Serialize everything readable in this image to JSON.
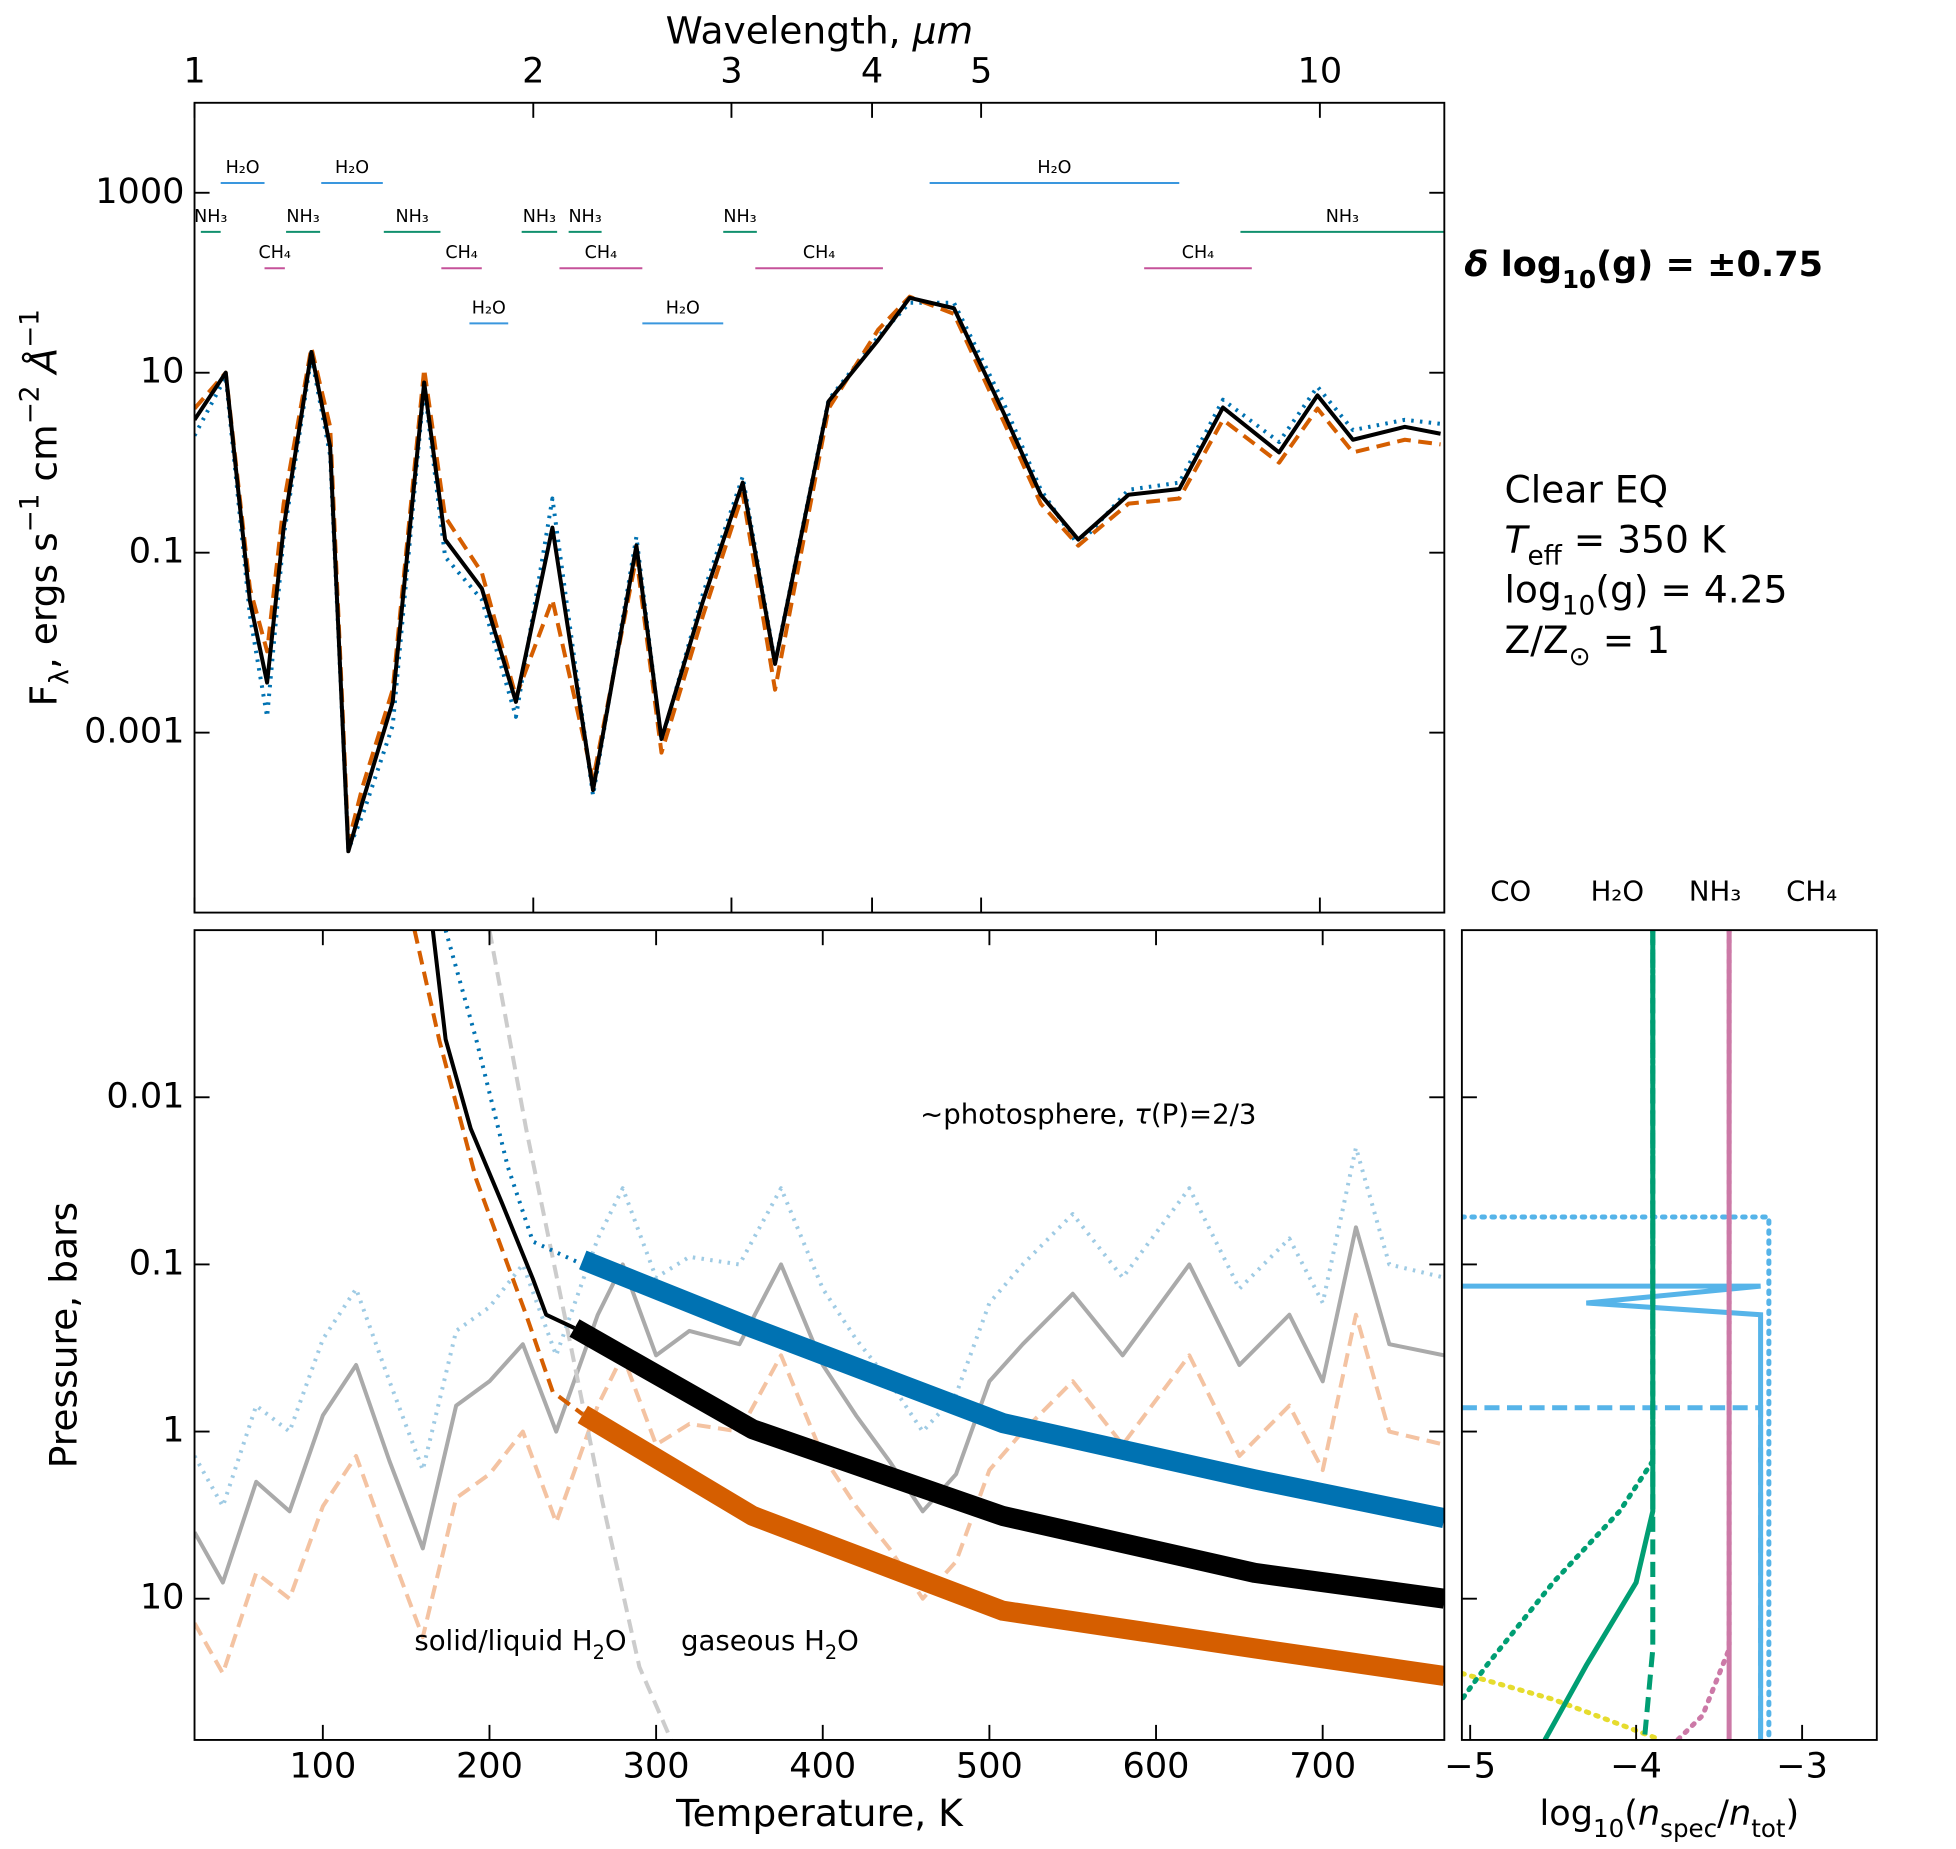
{
  "chart_data": [
    {
      "type": "line",
      "xscale": "log",
      "yscale": "log",
      "x_label": [
        {
          "text": "Wavelength, "
        },
        {
          "text": "μm",
          "style": "i"
        }
      ],
      "y_label": [
        {
          "text": "F"
        },
        {
          "text": "λ",
          "style": "sub"
        },
        {
          "text": ", ergs s"
        },
        {
          "text": "−1",
          "style": "sup"
        },
        {
          "text": " cm"
        },
        {
          "text": "−2",
          "style": "sup"
        },
        {
          "text": " "
        },
        {
          "text": "Å",
          "style": "i"
        },
        {
          "text": "−1",
          "style": "sup"
        }
      ],
      "xlim": [
        1,
        12.9
      ],
      "ylim": [
        1e-05,
        10000
      ],
      "xticks": [
        1,
        2,
        3,
        4,
        5,
        10
      ],
      "yticks": [
        0.001,
        0.1,
        10,
        1000
      ],
      "x": [
        1.0,
        1.066,
        1.12,
        1.16,
        1.2,
        1.27,
        1.32,
        1.37,
        1.41,
        1.5,
        1.6,
        1.67,
        1.8,
        1.93,
        2.08,
        2.26,
        2.47,
        2.6,
        2.83,
        3.07,
        3.28,
        3.66,
        4.05,
        4.32,
        4.73,
        5.24,
        5.65,
        6.1,
        6.76,
        7.5,
        8.2,
        9.2,
        9.95,
        10.7,
        11.9,
        12.8
      ],
      "series": [
        {
          "color": "#0072b2",
          "linestyle": "dotted",
          "values": [
            2,
            9,
            0.02,
            0.0015,
            0.15,
            15,
            1.2,
            5e-05,
            0.00012,
            0.0012,
            7,
            0.09,
            0.03,
            0.0015,
            0.4,
            0.0002,
            0.15,
            0.0008,
            0.035,
            0.7,
            0.006,
            5,
            25,
            60,
            60,
            4.5,
            0.5,
            0.12,
            0.5,
            0.6,
            5,
            1.7,
            7,
            2.3,
            3,
            2.7
          ]
        },
        {
          "color": "#d55e00",
          "linestyle": "dashed",
          "values": [
            4,
            10,
            0.04,
            0.008,
            0.35,
            19,
            2.5,
            6e-05,
            0.00025,
            0.003,
            11,
            0.25,
            0.06,
            0.0025,
            0.03,
            0.0003,
            0.09,
            0.0006,
            0.02,
            0.45,
            0.003,
            4,
            30,
            70,
            45,
            2.8,
            0.35,
            0.12,
            0.35,
            0.4,
            3,
            1,
            4,
            1.3,
            1.8,
            1.6
          ]
        },
        {
          "color": "#000000",
          "linestyle": "solid",
          "values": [
            3,
            10,
            0.029,
            0.0036,
            0.19,
            17,
            1.5,
            4.8e-05,
            0.00017,
            0.0022,
            7.8,
            0.14,
            0.04,
            0.0022,
            0.19,
            0.00023,
            0.12,
            0.00085,
            0.029,
            0.6,
            0.0058,
            4.8,
            23,
            68,
            52,
            3.5,
            0.44,
            0.14,
            0.44,
            0.51,
            4.1,
            1.3,
            5.6,
            1.8,
            2.5,
            2.1
          ]
        }
      ],
      "bands": [
        {
          "label": "H₂O",
          "range": [
            1.055,
            1.154
          ],
          "color": "#3a97de"
        },
        {
          "label": "H₂O",
          "range": [
            1.296,
            1.47
          ],
          "color": "#3a97de"
        },
        {
          "label": "H₂O",
          "range": [
            4.5,
            7.5
          ],
          "color": "#3a97de"
        },
        {
          "label": "NH₃",
          "range": [
            1.013,
            1.055
          ],
          "color": "#11906e"
        },
        {
          "label": "NH₃",
          "range": [
            1.206,
            1.293
          ],
          "color": "#11906e"
        },
        {
          "label": "NH₃",
          "range": [
            1.473,
            1.654
          ],
          "color": "#11906e"
        },
        {
          "label": "NH₃",
          "range": [
            1.953,
            2.1
          ],
          "color": "#11906e"
        },
        {
          "label": "NH₃",
          "range": [
            2.15,
            2.3
          ],
          "color": "#11906e"
        },
        {
          "label": "NH₃",
          "range": [
            2.95,
            3.16
          ],
          "color": "#11906e"
        },
        {
          "label": "NH₃",
          "range": [
            8.5,
            12.9
          ],
          "color": "#11906e"
        },
        {
          "label": "CH₄",
          "range": [
            1.154,
            1.203
          ],
          "color": "#c5529a"
        },
        {
          "label": "CH₄",
          "range": [
            1.657,
            1.8
          ],
          "color": "#c5529a"
        },
        {
          "label": "CH₄",
          "range": [
            2.11,
            2.5
          ],
          "color": "#c5529a"
        },
        {
          "label": "CH₄",
          "range": [
            3.15,
            4.09
          ],
          "color": "#c5529a"
        },
        {
          "label": "CH₄",
          "range": [
            6.98,
            8.7
          ],
          "color": "#c5529a"
        },
        {
          "label": "H₂O",
          "range": [
            1.755,
            1.9
          ],
          "color": "#3a97de"
        },
        {
          "label": "H₂O",
          "range": [
            2.5,
            2.95
          ],
          "color": "#3a97de"
        }
      ],
      "annotation": [
        {
          "text": "δ",
          "style": "i"
        },
        {
          "text": " log"
        },
        {
          "text": "10",
          "style": "sub"
        },
        {
          "text": "(g) = ±0.75"
        }
      ],
      "model_info": [
        [
          {
            "text": "Clear EQ"
          }
        ],
        [
          {
            "text": "T",
            "style": "i"
          },
          {
            "text": "eff",
            "style": "sub"
          },
          {
            "text": " = 350 K"
          }
        ],
        [
          {
            "text": "log"
          },
          {
            "text": "10",
            "style": "sub"
          },
          {
            "text": "(g) = 4.25"
          }
        ],
        [
          {
            "text": "Z/Z"
          },
          {
            "text": "⊙",
            "style": "sub"
          },
          {
            "text": " = 1"
          }
        ]
      ]
    },
    {
      "type": "profile",
      "xscale": "linear",
      "yscale": "log",
      "y_inverted": true,
      "x_label": [
        {
          "text": "Temperature, K"
        }
      ],
      "y_label": [
        {
          "text": "Pressure, bars"
        }
      ],
      "xlim": [
        23,
        773
      ],
      "ylim": [
        0.001,
        70
      ],
      "xticks": [
        100,
        200,
        300,
        400,
        500,
        600,
        700
      ],
      "yticks": [
        0.01,
        0.1,
        1,
        10
      ],
      "series": [
        {
          "color": "#9fcbe4",
          "linestyle": "dotted",
          "x": [
            23,
            40,
            60,
            80,
            100,
            120,
            140,
            160,
            180,
            200,
            220,
            240,
            265,
            280,
            300,
            320,
            350,
            375,
            400,
            420,
            440,
            460,
            480,
            500,
            520,
            550,
            580,
            620,
            650,
            680,
            700,
            720,
            740,
            773
          ],
          "values": [
            1.4,
            2.8,
            0.7,
            1.0,
            0.28,
            0.14,
            0.5,
            1.7,
            0.25,
            0.18,
            0.1,
            0.35,
            0.07,
            0.035,
            0.12,
            0.09,
            0.1,
            0.035,
            0.14,
            0.28,
            0.5,
            1.0,
            0.6,
            0.17,
            0.1,
            0.05,
            0.12,
            0.035,
            0.14,
            0.07,
            0.17,
            0.02,
            0.1,
            0.12
          ]
        },
        {
          "color": "#aaaaaa",
          "linestyle": "solid",
          "x": [
            23,
            40,
            60,
            80,
            100,
            120,
            140,
            160,
            180,
            200,
            220,
            240,
            265,
            280,
            300,
            320,
            350,
            375,
            400,
            420,
            440,
            460,
            480,
            500,
            520,
            550,
            580,
            620,
            650,
            680,
            700,
            720,
            740,
            773
          ],
          "values": [
            4,
            8,
            2,
            3,
            0.8,
            0.4,
            1.5,
            5,
            0.7,
            0.5,
            0.3,
            1.0,
            0.2,
            0.1,
            0.35,
            0.25,
            0.3,
            0.1,
            0.4,
            0.8,
            1.5,
            3,
            1.8,
            0.5,
            0.3,
            0.15,
            0.35,
            0.1,
            0.4,
            0.2,
            0.5,
            0.06,
            0.3,
            0.35
          ]
        },
        {
          "color": "#f4c3a2",
          "linestyle": "dashed",
          "x": [
            23,
            40,
            60,
            80,
            100,
            120,
            140,
            160,
            180,
            200,
            220,
            240,
            265,
            280,
            300,
            320,
            350,
            375,
            400,
            420,
            440,
            460,
            480,
            500,
            520,
            550,
            580,
            620,
            650,
            680,
            700,
            720,
            740,
            773
          ],
          "values": [
            14,
            28,
            7,
            10,
            2.8,
            1.4,
            5,
            17,
            2.5,
            1.8,
            1.0,
            3.5,
            0.7,
            0.35,
            1.2,
            0.9,
            1.0,
            0.35,
            1.4,
            2.8,
            5,
            10,
            6,
            1.7,
            1.0,
            0.5,
            1.2,
            0.35,
            1.4,
            0.7,
            1.7,
            0.2,
            1.0,
            1.2
          ]
        },
        {
          "color": "#cccccc",
          "linestyle": "dashed",
          "x": [
            200,
            222,
            245,
            268,
            290,
            309
          ],
          "values": [
            0.001,
            0.0154,
            0.2,
            2.7,
            25.6,
            70
          ]
        },
        {
          "color": "#0072b2",
          "linestyle": "dotted",
          "x": [
            173.7,
            192,
            211,
            226,
            256
          ],
          "values": [
            0.001,
            0.0045,
            0.026,
            0.073,
            0.1
          ]
        },
        {
          "color": "#000000",
          "linestyle": "solid",
          "x": [
            166,
            173.7,
            188.7,
            207.5,
            226,
            234,
            251
          ],
          "values": [
            0.001,
            0.0045,
            0.0154,
            0.043,
            0.122,
            0.2,
            0.24
          ]
        },
        {
          "color": "#d55e00",
          "linestyle": "dashed",
          "x": [
            155,
            170,
            192,
            222,
            238,
            256
          ],
          "values": [
            0.001,
            0.0046,
            0.031,
            0.2,
            0.58,
            0.79
          ]
        },
        {
          "color": "#0072b2",
          "linestyle": "thick",
          "x": [
            256,
            358,
            508,
            659,
            773
          ],
          "values": [
            0.094,
            0.24,
            0.89,
            1.93,
            3.3
          ]
        },
        {
          "color": "#000000",
          "linestyle": "thick",
          "x": [
            251,
            358,
            508,
            659,
            773
          ],
          "values": [
            0.24,
            0.97,
            3.2,
            7.0,
            10
          ]
        },
        {
          "color": "#d55e00",
          "linestyle": "thick",
          "x": [
            256,
            358,
            508,
            659,
            773
          ],
          "values": [
            0.79,
            3.2,
            11.8,
            19.8,
            29
          ]
        }
      ],
      "annotations": [
        [
          {
            "text": "~photosphere, "
          },
          {
            "text": "τ",
            "style": "i"
          },
          {
            "text": "(P)=2/3"
          }
        ],
        [
          {
            "text": "solid/liquid H"
          },
          {
            "text": "2",
            "style": "sub"
          },
          {
            "text": "O"
          }
        ],
        [
          {
            "text": "gaseous H"
          },
          {
            "text": "2",
            "style": "sub"
          },
          {
            "text": "O"
          }
        ]
      ]
    },
    {
      "type": "abundance",
      "xscale": "linear",
      "yscale": "log",
      "y_inverted": true,
      "x_label": [
        {
          "text": "log"
        },
        {
          "text": "10",
          "style": "sub"
        },
        {
          "text": "("
        },
        {
          "text": "n",
          "style": "i"
        },
        {
          "text": "spec",
          "style": "sub"
        },
        {
          "text": "/"
        },
        {
          "text": "n",
          "style": "i"
        },
        {
          "text": "tot",
          "style": "sub"
        },
        {
          "text": ")"
        }
      ],
      "xlim": [
        -5.05,
        -2.55
      ],
      "ylim": [
        0.001,
        70
      ],
      "xticks": [
        {
          "value": -5,
          "label": "−5"
        },
        {
          "value": -4,
          "label": "−4"
        },
        {
          "value": -3,
          "label": "−3"
        }
      ],
      "species": [
        {
          "name": "CO",
          "color": "#e6dc2e",
          "profiles": [
            {
              "linestyle": "dotted",
              "x": [
                -5.05,
                -4.5,
                -3.85
              ],
              "values": [
                28,
                40,
                70
              ]
            }
          ]
        },
        {
          "name": "H₂O",
          "color": "#56b4e9",
          "profiles": [
            {
              "linestyle": "solid",
              "x": [
                -5.05,
                -3.25,
                -4.3,
                -3.25,
                -3.25
              ],
              "values": [
                0.135,
                0.135,
                0.17,
                0.2,
                70
              ]
            },
            {
              "linestyle": "dotted",
              "x": [
                -5.05,
                -3.2,
                -3.2
              ],
              "values": [
                0.052,
                0.052,
                70
              ]
            },
            {
              "linestyle": "dashed",
              "x": [
                -5.05,
                -3.25,
                -3.25
              ],
              "values": [
                0.72,
                0.72,
                70
              ]
            }
          ]
        },
        {
          "name": "NH₃",
          "color": "#009e73",
          "profiles": [
            {
              "linestyle": "solid",
              "x": [
                -3.9,
                -3.9,
                -4.0,
                -4.3,
                -4.55
              ],
              "values": [
                0.001,
                3,
                8,
                25,
                70
              ]
            },
            {
              "linestyle": "dashed",
              "x": [
                -3.9,
                -3.9,
                -3.95
              ],
              "values": [
                0.001,
                20,
                70
              ]
            },
            {
              "linestyle": "dotted",
              "x": [
                -3.9,
                -3.9,
                -4.1,
                -4.5,
                -4.9,
                -5.05
              ],
              "values": [
                0.001,
                1.5,
                3,
                8,
                25,
                40
              ]
            }
          ]
        },
        {
          "name": "CH₄",
          "color": "#cc79a7",
          "profiles": [
            {
              "linestyle": "solid",
              "x": [
                -3.44,
                -3.44
              ],
              "values": [
                0.001,
                70
              ]
            },
            {
              "linestyle": "dotted",
              "x": [
                -3.44,
                -3.44,
                -3.6,
                -3.75
              ],
              "values": [
                0.001,
                20,
                50,
                70
              ]
            }
          ]
        }
      ]
    }
  ]
}
